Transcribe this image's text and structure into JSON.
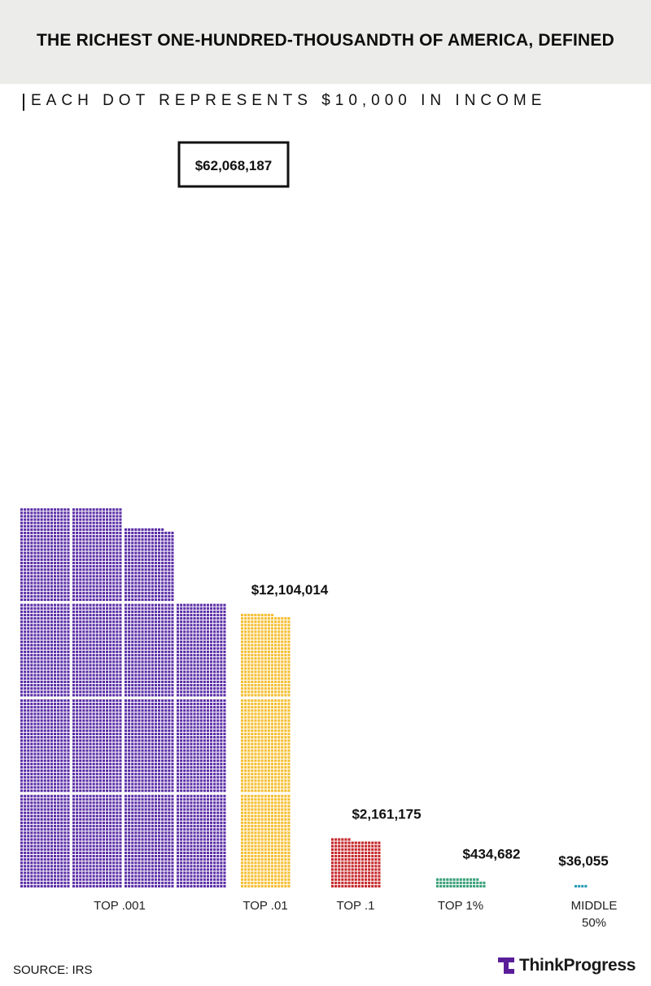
{
  "header": {
    "title": "THE RICHEST ONE-HUNDRED-THOUSANDTH OF AMERICA, DEFINED",
    "subtitle": "EACH DOT REPRESENTS $10,000 IN INCOME"
  },
  "footer": {
    "source": "SOURCE: IRS",
    "brand": "ThinkProgress"
  },
  "colors": {
    "purple": "#5b2ea6",
    "yellow": "#f5bf33",
    "red": "#c5282b",
    "green": "#3aa079",
    "teal": "#2c9cb5",
    "brand": "#5a1d9a"
  },
  "chart_data": {
    "type": "bar",
    "unit_per_dot": 10000,
    "categories": [
      "TOP .001",
      "TOP .01",
      "TOP .1",
      "TOP 1%",
      "MIDDLE 50%"
    ],
    "values": [
      62068187,
      12104014,
      2161175,
      434682,
      36055
    ],
    "value_labels": [
      "$62,068,187",
      "$12,104,014",
      "$2,161,175",
      "$434,682",
      "$36,055"
    ],
    "category_lines": [
      [
        "TOP .001"
      ],
      [
        "TOP .01"
      ],
      [
        "TOP .1"
      ],
      [
        "TOP 1%"
      ],
      [
        "MIDDLE",
        "50%"
      ]
    ],
    "series_colors": [
      "#5b2ea6",
      "#f5bf33",
      "#c5282b",
      "#3aa079",
      "#2c9cb5"
    ]
  }
}
